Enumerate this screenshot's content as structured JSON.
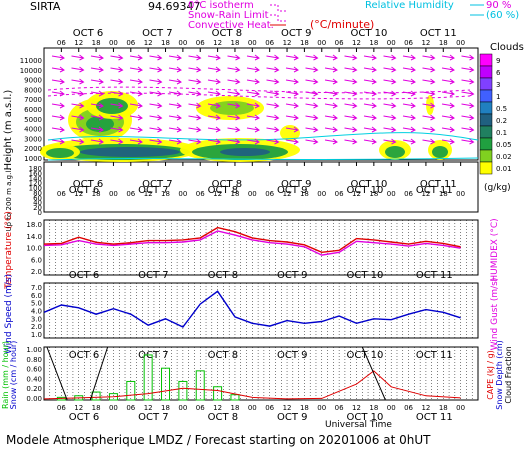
{
  "header": {
    "station": "SIRTA",
    "coords": "94.69347",
    "legend_isotherm": "0°C isotherm",
    "legend_snowrain": "Snow-Rain Limit",
    "legend_convective": "Convective Heat.",
    "legend_convective_unit": "(°C/minute)",
    "legend_rh": "Relative Humidity",
    "legend_rh_90": "90 %",
    "legend_rh_60": "(60 %)"
  },
  "footer": {
    "title": "Modele Atmospherique LMDZ / Forecast starting on 20201006 at 0hUT",
    "xlabel": "Universal Time"
  },
  "colors": {
    "magenta": "#e000e0",
    "red": "#e00000",
    "blue": "#0000cc",
    "cyan": "#00d0e0",
    "green": "#00c000",
    "grid": "#000000"
  },
  "chart_data": [
    {
      "type": "heatmap",
      "panel": "clouds",
      "days": [
        "OCT 6",
        "OCT 7",
        "OCT 8",
        "OCT 9",
        "OCT 10",
        "OCT 11"
      ],
      "hour_ticks": [
        "06",
        "12",
        "18",
        "00"
      ],
      "ylabel": "Height (m a.s.l.)",
      "ylabel_low": "Up to 200 m a.g.l.",
      "yticks_main": [
        "1000",
        "2000",
        "3000",
        "4000",
        "5000",
        "6000",
        "7000",
        "8000",
        "9000",
        "10000",
        "11000"
      ],
      "yticks_low": [
        "180",
        "160",
        "140",
        "120",
        "100",
        "80",
        "60",
        "40",
        "20",
        "0"
      ],
      "colorbar_title": "Clouds",
      "colorbar_unit": "(g/kg)",
      "colorbar_levels": [
        "9",
        "6",
        "3",
        "1",
        "0.5",
        "0.2",
        "0.1",
        "0.05",
        "0.02",
        "0.01"
      ],
      "colorbar_colors": [
        "#ff00ff",
        "#c000ff",
        "#8040ff",
        "#4060ff",
        "#2080c0",
        "#206080",
        "#208060",
        "#20a040",
        "#80d020",
        "#ffff00"
      ]
    },
    {
      "type": "line",
      "panel": "temperature",
      "ylabel": "Temperature (°C)",
      "ylabel_right": "HUMIDEX (°C)",
      "yticks": [
        "18.0",
        "14.0",
        "10.0",
        "6.0",
        "2.0"
      ],
      "ylim": [
        2,
        18
      ],
      "x_hours": [
        0,
        6,
        12,
        18,
        24,
        30,
        36,
        42,
        48,
        54,
        60,
        66,
        72,
        78,
        84,
        90,
        96,
        102,
        108,
        114,
        120,
        126,
        132,
        138,
        144
      ],
      "series": [
        {
          "values": [
            11.0,
            11.2,
            13.0,
            11.5,
            11.0,
            11.4,
            12.0,
            12.0,
            12.2,
            12.8,
            15.8,
            14.6,
            12.8,
            12.0,
            11.6,
            10.8,
            8.6,
            9.2,
            12.6,
            12.2,
            11.6,
            11.0,
            11.8,
            11.2,
            10.2
          ],
          "color": "#e00000"
        },
        {
          "values": [
            10.6,
            10.8,
            12.0,
            11.0,
            10.6,
            11.0,
            11.4,
            11.4,
            11.6,
            12.2,
            14.8,
            13.6,
            12.2,
            11.4,
            11.0,
            10.2,
            7.8,
            8.6,
            11.8,
            11.4,
            11.0,
            10.4,
            11.2,
            10.6,
            9.8
          ],
          "color": "#e000e0"
        }
      ]
    },
    {
      "type": "line",
      "panel": "wind",
      "ylabel": "Wind Speed (m/s)",
      "ylabel_right": "Wind Gust (m/s)",
      "yticks": [
        "7.0",
        "6.0",
        "5.0",
        "4.0",
        "3.0",
        "2.0",
        "1.0"
      ],
      "ylim": [
        1,
        7
      ],
      "x_hours": [
        0,
        6,
        12,
        18,
        24,
        30,
        36,
        42,
        48,
        54,
        60,
        66,
        72,
        78,
        84,
        90,
        96,
        102,
        108,
        114,
        120,
        126,
        132,
        138,
        144
      ],
      "series": [
        {
          "values": [
            3.8,
            4.6,
            4.3,
            3.6,
            4.2,
            3.6,
            2.4,
            3.1,
            2.2,
            4.7,
            6.1,
            3.3,
            2.6,
            2.3,
            2.9,
            2.6,
            2.8,
            3.4,
            2.6,
            3.1,
            3.0,
            3.6,
            4.1,
            3.8,
            3.2
          ],
          "color": "#0000cc"
        }
      ]
    },
    {
      "type": "bar",
      "panel": "precip",
      "ylabel_left": "Rain (mm / hour)",
      "ylabel_left2": "Snow (cm / hour)",
      "ylabel_right": "CAPE (kJ / g)",
      "ylabel_right2": "Snow Depth (cm)",
      "ylabel_right3": "Cloud Fraction",
      "yticks": [
        "1.00",
        "0.80",
        "0.60",
        "0.40",
        "0.20",
        "0.00"
      ],
      "ylim": [
        0,
        1
      ],
      "x_hours": [
        6,
        12,
        18,
        24,
        30,
        36,
        42,
        48,
        54,
        60,
        66
      ],
      "rain": [
        0.05,
        0.08,
        0.15,
        0.12,
        0.35,
        0.85,
        0.6,
        0.35,
        0.55,
        0.25,
        0.1
      ],
      "cape_hours": [
        0,
        12,
        24,
        36,
        48,
        60,
        72,
        84,
        96,
        108,
        114,
        120,
        132,
        144
      ],
      "cape": [
        0.02,
        0.04,
        0.06,
        0.12,
        0.22,
        0.18,
        0.05,
        0.02,
        0.03,
        0.3,
        0.55,
        0.25,
        0.08,
        0.04
      ]
    }
  ]
}
